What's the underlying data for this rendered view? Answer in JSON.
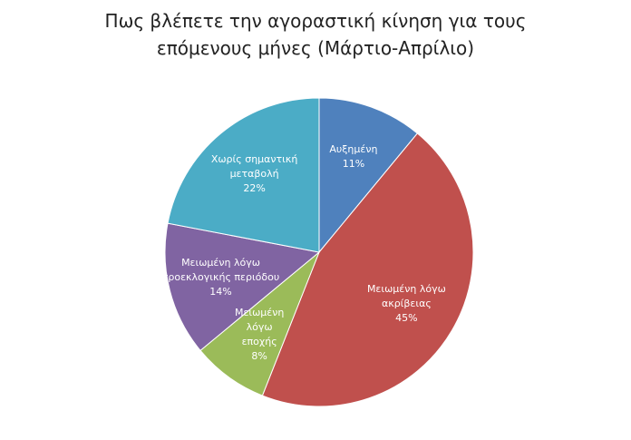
{
  "chart_data": {
    "type": "pie",
    "title": "Πως βλέπετε την αγοραστική κίνηση για τους επόμενους μήνες (Μάρτιο-Απρίλιο)",
    "categories": [
      "Αυξημένη",
      "Μειωμένη λόγω ακρίβειας",
      "Μειωμένη λόγω εποχής",
      "Μειωμένη λόγω προεκλογικής περιόδου",
      "Χωρίς σημαντική μεταβολή"
    ],
    "values": [
      11,
      45,
      8,
      14,
      22
    ],
    "value_labels": [
      "11%",
      "45%",
      "8%",
      "14%",
      "22%"
    ],
    "colors": [
      "#4f81bd",
      "#c0504d",
      "#9bbb59",
      "#8064a2",
      "#4bacc6"
    ]
  }
}
